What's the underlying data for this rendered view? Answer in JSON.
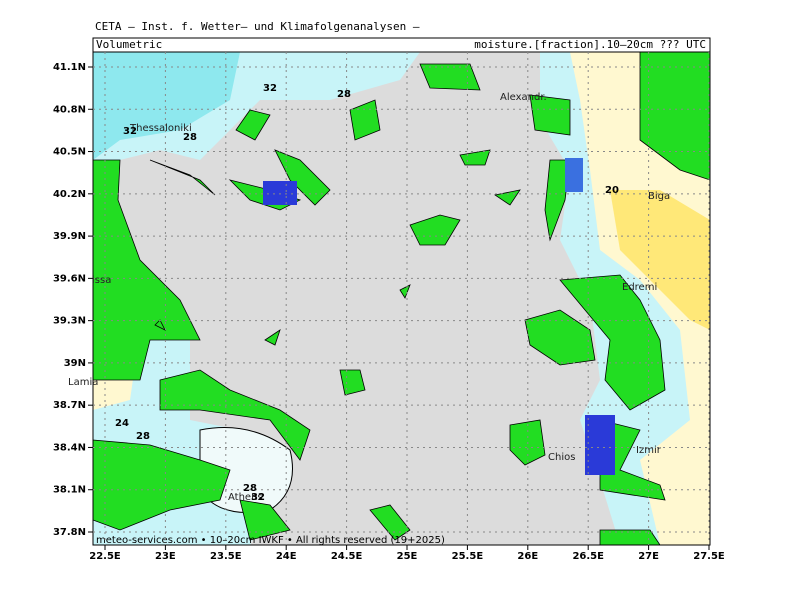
{
  "header": {
    "title": "CETA – Inst. f. Wetter– und Klimafolgenanalysen –",
    "left": "Volumetric",
    "right": "moisture.[fraction].10–20cm ??? UTC"
  },
  "map": {
    "lat_labels": [
      "41.1N",
      "40.8N",
      "40.5N",
      "40.2N",
      "39.9N",
      "39.6N",
      "39.3N",
      "39N",
      "38.7N",
      "38.4N",
      "38.1N",
      "37.8N"
    ],
    "lon_labels": [
      "22.5E",
      "23E",
      "23.5E",
      "24E",
      "24.5E",
      "25E",
      "25.5E",
      "26E",
      "26.5E",
      "27E",
      "27.5E"
    ],
    "places": [
      "Thessaloniki",
      "Alexandr.",
      "Biga",
      "Edremi",
      "Lamia",
      "issa",
      "Chios",
      "Izmir",
      "Athens"
    ],
    "contour_labels": [
      "32",
      "28",
      "32",
      "28",
      "20",
      "24",
      "28",
      "28",
      "32"
    ]
  },
  "footer": "meteo-services.com • 10–20cm IWKF • All rights reserved (19+2025)"
}
